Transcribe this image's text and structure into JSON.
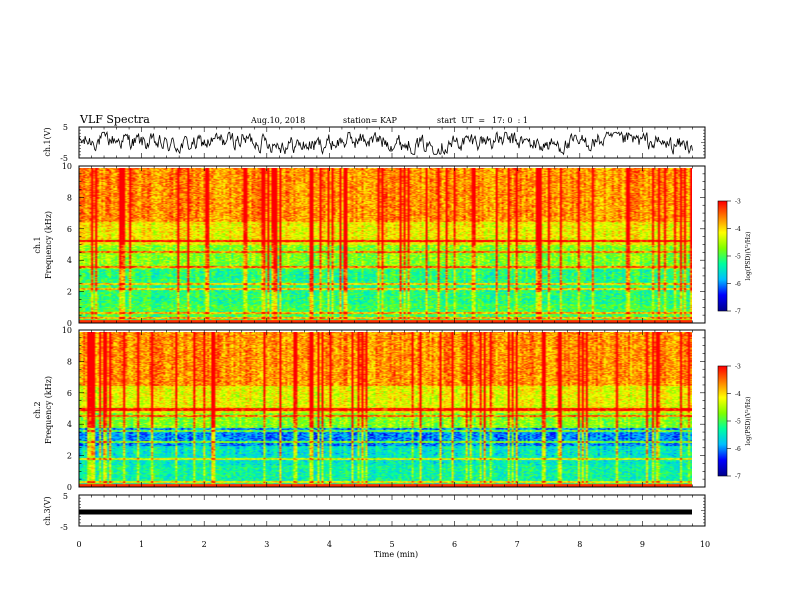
{
  "header": {
    "title": "VLF Spectra",
    "date": "Aug.10, 2018",
    "station": "station= KAP",
    "start_label": "start  UT  =",
    "start_time": "17: 0  : 1"
  },
  "colors": {
    "colormap": [
      "#00008f",
      "#0000ff",
      "#00bfff",
      "#00ff9f",
      "#7fff00",
      "#ffff00",
      "#ff8000",
      "#ff0000"
    ],
    "axis": "#000000",
    "waveform": "#000000"
  },
  "chart_data": [
    {
      "type": "line",
      "name": "ch1-waveform",
      "ylabel": "ch.1(V)",
      "xlim": [
        0,
        10
      ],
      "ylim": [
        -5,
        5
      ],
      "yticks": [
        "5",
        "-5"
      ],
      "note_values": "noisy waveform fluctuating roughly between -3.5 and 3 V over 0-9.8 min"
    },
    {
      "type": "heatmap",
      "name": "ch1-spectrogram",
      "ylabel": "ch.1\nFrequency  (kHz)",
      "xlim": [
        0,
        10
      ],
      "ylim": [
        0,
        10
      ],
      "yticks": [
        "0",
        "2",
        "4",
        "6",
        "8",
        "10"
      ],
      "data_xmax": 9.8,
      "colorbar": {
        "label": "log(PSD)(V²/Hz)",
        "range": [
          -7,
          -3
        ],
        "ticks": [
          "-3",
          "-4",
          "-5",
          "-6",
          "-7"
        ]
      },
      "bands_kHz": [
        0.3,
        0.6,
        2.2,
        2.5,
        3.6,
        4.6,
        5.3
      ]
    },
    {
      "type": "heatmap",
      "name": "ch2-spectrogram",
      "ylabel": "ch.2\nFrequency  (kHz)",
      "xlim": [
        0,
        10
      ],
      "ylim": [
        0,
        10
      ],
      "yticks": [
        "0",
        "2",
        "4",
        "6",
        "8",
        "10"
      ],
      "data_xmax": 9.8,
      "colorbar": {
        "label": "log(PSD)(V²/Hz)",
        "range": [
          -7,
          -3
        ],
        "ticks": [
          "-3",
          "-4",
          "-5",
          "-6",
          "-7"
        ]
      },
      "bands_kHz": [
        0.3,
        1.8,
        2.9,
        3.6,
        4.6,
        5.0
      ]
    },
    {
      "type": "line",
      "name": "ch3-waveform",
      "ylabel": "ch.3(V)",
      "xlabel": "Time  (min)",
      "xlim": [
        0,
        10
      ],
      "ylim": [
        -5,
        5
      ],
      "yticks": [
        "5",
        "-5"
      ],
      "xticks": [
        "0",
        "1",
        "2",
        "3",
        "4",
        "5",
        "6",
        "7",
        "8",
        "9",
        "10"
      ],
      "x": [
        0,
        9.8
      ],
      "y": [
        0,
        0
      ]
    }
  ]
}
